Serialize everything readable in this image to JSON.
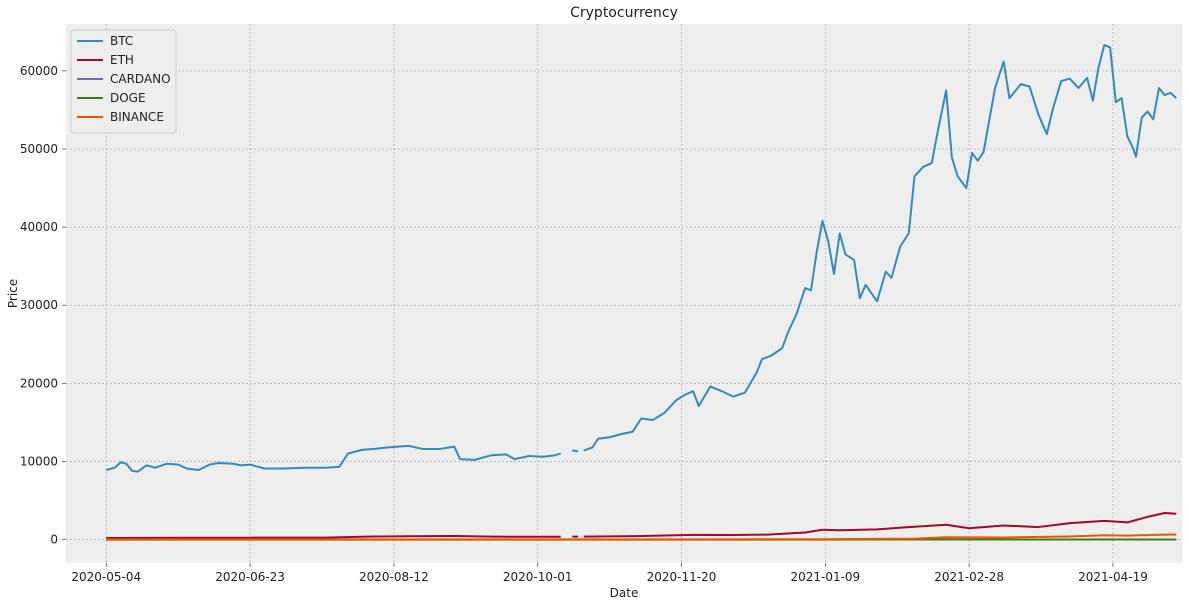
{
  "chart_data": {
    "type": "line",
    "title": "Cryptocurrency",
    "xlabel": "Date",
    "ylabel": "Price",
    "x_range": [
      "2020-04-20",
      "2021-05-13"
    ],
    "ylim": [
      -3000,
      66000
    ],
    "x_ticks": [
      "2020-05-04",
      "2020-06-23",
      "2020-08-12",
      "2020-10-01",
      "2020-11-20",
      "2021-01-09",
      "2021-02-28",
      "2021-04-19"
    ],
    "y_ticks": [
      0,
      10000,
      20000,
      30000,
      40000,
      50000,
      60000
    ],
    "grid": true,
    "legend_position": "top-left",
    "series": [
      {
        "name": "BTC",
        "color": "#348ABD",
        "points": [
          [
            "2020-05-04",
            8900
          ],
          [
            "2020-05-07",
            9200
          ],
          [
            "2020-05-09",
            9900
          ],
          [
            "2020-05-11",
            9700
          ],
          [
            "2020-05-13",
            8800
          ],
          [
            "2020-05-15",
            8700
          ],
          [
            "2020-05-18",
            9500
          ],
          [
            "2020-05-21",
            9200
          ],
          [
            "2020-05-25",
            9700
          ],
          [
            "2020-05-29",
            9600
          ],
          [
            "2020-06-01",
            9100
          ],
          [
            "2020-06-05",
            8900
          ],
          [
            "2020-06-09",
            9600
          ],
          [
            "2020-06-12",
            9800
          ],
          [
            "2020-06-17",
            9700
          ],
          [
            "2020-06-20",
            9500
          ],
          [
            "2020-06-23",
            9600
          ],
          [
            "2020-06-28",
            9100
          ],
          [
            "2020-07-05",
            9100
          ],
          [
            "2020-07-12",
            9200
          ],
          [
            "2020-07-19",
            9200
          ],
          [
            "2020-07-24",
            9300
          ],
          [
            "2020-07-27",
            11000
          ],
          [
            "2020-08-01",
            11500
          ],
          [
            "2020-08-05",
            11600
          ],
          [
            "2020-08-10",
            11800
          ],
          [
            "2020-08-17",
            12000
          ],
          [
            "2020-08-22",
            11600
          ],
          [
            "2020-08-28",
            11600
          ],
          [
            "2020-09-02",
            11900
          ],
          [
            "2020-09-04",
            10300
          ],
          [
            "2020-09-09",
            10200
          ],
          [
            "2020-09-15",
            10800
          ],
          [
            "2020-09-20",
            10900
          ],
          [
            "2020-09-23",
            10300
          ],
          [
            "2020-09-28",
            10700
          ],
          [
            "2020-10-03",
            10600
          ],
          [
            "2020-10-07",
            10800
          ],
          [
            "2020-10-09",
            11000
          ],
          {
            "gap": true
          },
          [
            "2020-10-13",
            11400
          ],
          [
            "2020-10-15",
            11300
          ],
          {
            "gap": true
          },
          [
            "2020-10-17",
            11400
          ],
          [
            "2020-10-20",
            11800
          ],
          [
            "2020-10-22",
            12900
          ],
          [
            "2020-10-26",
            13100
          ],
          [
            "2020-10-30",
            13500
          ],
          [
            "2020-11-03",
            13800
          ],
          [
            "2020-11-06",
            15500
          ],
          [
            "2020-11-10",
            15300
          ],
          [
            "2020-11-14",
            16200
          ],
          [
            "2020-11-18",
            17800
          ],
          [
            "2020-11-21",
            18500
          ],
          [
            "2020-11-24",
            19000
          ],
          [
            "2020-11-26",
            17100
          ],
          [
            "2020-11-30",
            19600
          ],
          [
            "2020-12-04",
            19000
          ],
          [
            "2020-12-08",
            18300
          ],
          [
            "2020-12-12",
            18800
          ],
          [
            "2020-12-16",
            21300
          ],
          [
            "2020-12-18",
            23100
          ],
          [
            "2020-12-21",
            23500
          ],
          [
            "2020-12-25",
            24500
          ],
          [
            "2020-12-27",
            26500
          ],
          [
            "2020-12-30",
            28900
          ],
          [
            "2021-01-02",
            32200
          ],
          [
            "2021-01-04",
            31900
          ],
          [
            "2021-01-06",
            36800
          ],
          [
            "2021-01-08",
            40800
          ],
          [
            "2021-01-10",
            38200
          ],
          [
            "2021-01-12",
            34000
          ],
          [
            "2021-01-14",
            39200
          ],
          [
            "2021-01-16",
            36500
          ],
          [
            "2021-01-19",
            35800
          ],
          [
            "2021-01-21",
            30900
          ],
          [
            "2021-01-23",
            32600
          ],
          [
            "2021-01-27",
            30500
          ],
          [
            "2021-01-30",
            34300
          ],
          [
            "2021-02-01",
            33500
          ],
          [
            "2021-02-04",
            37500
          ],
          [
            "2021-02-07",
            39200
          ],
          [
            "2021-02-09",
            46500
          ],
          [
            "2021-02-12",
            47700
          ],
          [
            "2021-02-15",
            48200
          ],
          [
            "2021-02-17",
            52100
          ],
          [
            "2021-02-20",
            57500
          ],
          [
            "2021-02-22",
            48900
          ],
          [
            "2021-02-24",
            46500
          ],
          [
            "2021-02-27",
            45000
          ],
          [
            "2021-03-01",
            49500
          ],
          [
            "2021-03-03",
            48500
          ],
          [
            "2021-03-05",
            49600
          ],
          [
            "2021-03-09",
            57800
          ],
          [
            "2021-03-12",
            61200
          ],
          [
            "2021-03-14",
            56500
          ],
          [
            "2021-03-18",
            58300
          ],
          [
            "2021-03-21",
            58000
          ],
          [
            "2021-03-24",
            54500
          ],
          [
            "2021-03-27",
            51900
          ],
          [
            "2021-03-29",
            55000
          ],
          [
            "2021-04-01",
            58700
          ],
          [
            "2021-04-04",
            59000
          ],
          [
            "2021-04-07",
            57800
          ],
          [
            "2021-04-10",
            59100
          ],
          [
            "2021-04-12",
            56200
          ],
          [
            "2021-04-14",
            60500
          ],
          [
            "2021-04-16",
            63300
          ],
          [
            "2021-04-18",
            63000
          ],
          [
            "2021-04-20",
            56000
          ],
          [
            "2021-04-22",
            56500
          ],
          [
            "2021-04-24",
            51600
          ],
          [
            "2021-04-26",
            50100
          ],
          [
            "2021-04-27",
            49000
          ],
          [
            "2021-04-29",
            54000
          ],
          [
            "2021-05-01",
            54800
          ],
          [
            "2021-05-03",
            53800
          ],
          [
            "2021-05-05",
            57800
          ],
          [
            "2021-05-07",
            56900
          ],
          [
            "2021-05-09",
            57200
          ],
          [
            "2021-05-11",
            56500
          ]
        ]
      },
      {
        "name": "ETH",
        "color": "#A60628",
        "points": [
          [
            "2020-05-04",
            200
          ],
          [
            "2020-06-01",
            230
          ],
          [
            "2020-06-23",
            240
          ],
          [
            "2020-07-19",
            250
          ],
          [
            "2020-08-05",
            390
          ],
          [
            "2020-08-17",
            430
          ],
          [
            "2020-09-02",
            450
          ],
          [
            "2020-09-15",
            370
          ],
          [
            "2020-10-09",
            360
          ],
          {
            "gap": true
          },
          [
            "2020-10-13",
            380
          ],
          [
            "2020-10-15",
            380
          ],
          {
            "gap": true
          },
          [
            "2020-10-17",
            380
          ],
          [
            "2020-11-06",
            450
          ],
          [
            "2020-11-24",
            600
          ],
          [
            "2020-12-08",
            580
          ],
          [
            "2020-12-20",
            640
          ],
          [
            "2021-01-02",
            900
          ],
          [
            "2021-01-08",
            1250
          ],
          [
            "2021-01-14",
            1200
          ],
          [
            "2021-01-27",
            1300
          ],
          [
            "2021-02-07",
            1600
          ],
          [
            "2021-02-20",
            1900
          ],
          [
            "2021-02-28",
            1450
          ],
          [
            "2021-03-12",
            1800
          ],
          [
            "2021-03-24",
            1600
          ],
          [
            "2021-04-04",
            2100
          ],
          [
            "2021-04-16",
            2400
          ],
          [
            "2021-04-24",
            2200
          ],
          [
            "2021-05-01",
            2900
          ],
          [
            "2021-05-07",
            3400
          ],
          [
            "2021-05-11",
            3300
          ]
        ]
      },
      {
        "name": "CARDANO",
        "color": "#7A68A6",
        "points": [
          [
            "2020-05-04",
            0.05
          ],
          [
            "2020-08-17",
            0.14
          ],
          [
            "2020-11-24",
            0.15
          ],
          [
            "2021-01-14",
            0.35
          ],
          [
            "2021-02-28",
            1.3
          ],
          [
            "2021-04-16",
            1.4
          ],
          [
            "2021-05-11",
            1.6
          ]
        ]
      },
      {
        "name": "DOGE",
        "color": "#467821",
        "points": [
          [
            "2020-05-04",
            0.002
          ],
          [
            "2020-11-24",
            0.003
          ],
          [
            "2021-01-30",
            0.03
          ],
          [
            "2021-04-16",
            0.3
          ],
          [
            "2021-05-11",
            0.5
          ]
        ]
      },
      {
        "name": "BINANCE",
        "color": "#E55A00",
        "points": [
          [
            "2020-05-04",
            17
          ],
          [
            "2020-08-17",
            22
          ],
          [
            "2020-11-24",
            30
          ],
          [
            "2021-01-09",
            42
          ],
          [
            "2021-02-09",
            120
          ],
          [
            "2021-02-20",
            300
          ],
          [
            "2021-03-12",
            270
          ],
          [
            "2021-04-04",
            400
          ],
          [
            "2021-04-16",
            560
          ],
          [
            "2021-04-24",
            500
          ],
          [
            "2021-05-03",
            600
          ],
          [
            "2021-05-11",
            650
          ]
        ]
      }
    ]
  }
}
